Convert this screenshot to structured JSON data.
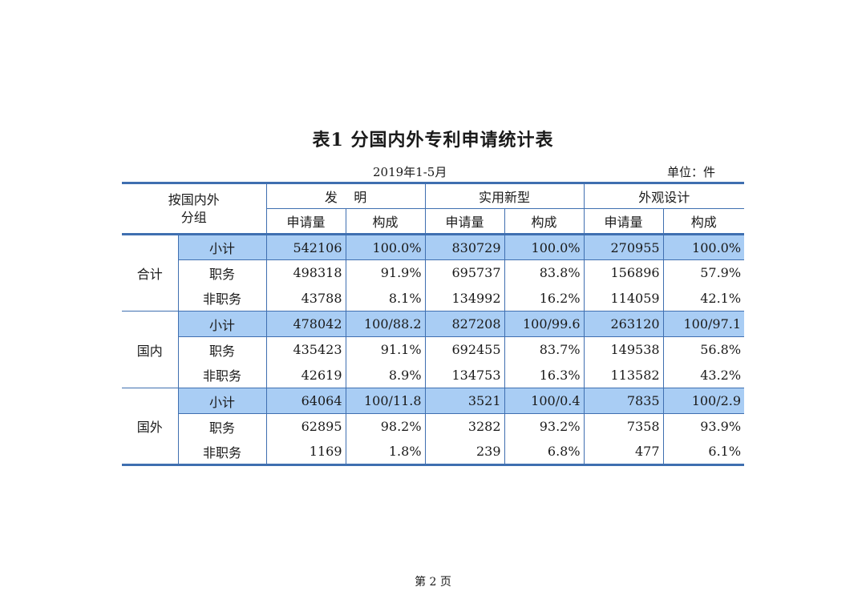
{
  "title": "表1  分国内外专利申请统计表",
  "subtitle": "2019年1-5月",
  "unit": "单位：件",
  "header": {
    "corner_line1": "按国内外",
    "corner_line2": "分组",
    "invention": "发    明",
    "utility": "实用新型",
    "design": "外观设计",
    "count": "申请量",
    "share": "构成"
  },
  "groups": [
    {
      "name": "合计",
      "rows": [
        {
          "label": "小计",
          "cells": [
            "542106",
            "100.0%",
            "830729",
            "100.0%",
            "270955",
            "100.0%"
          ]
        },
        {
          "label": "职务",
          "cells": [
            "498318",
            "91.9%",
            "695737",
            "83.8%",
            "156896",
            "57.9%"
          ]
        },
        {
          "label": "非职务",
          "cells": [
            "43788",
            "8.1%",
            "134992",
            "16.2%",
            "114059",
            "42.1%"
          ]
        }
      ]
    },
    {
      "name": "国内",
      "rows": [
        {
          "label": "小计",
          "cells": [
            "478042",
            "100/88.2",
            "827208",
            "100/99.6",
            "263120",
            "100/97.1"
          ]
        },
        {
          "label": "职务",
          "cells": [
            "435423",
            "91.1%",
            "692455",
            "83.7%",
            "149538",
            "56.8%"
          ]
        },
        {
          "label": "非职务",
          "cells": [
            "42619",
            "8.9%",
            "134753",
            "16.3%",
            "113582",
            "43.2%"
          ]
        }
      ]
    },
    {
      "name": "国外",
      "rows": [
        {
          "label": "小计",
          "cells": [
            "64064",
            "100/11.8",
            "3521",
            "100/0.4",
            "7835",
            "100/2.9"
          ]
        },
        {
          "label": "职务",
          "cells": [
            "62895",
            "98.2%",
            "3282",
            "93.2%",
            "7358",
            "93.9%"
          ]
        },
        {
          "label": "非职务",
          "cells": [
            "1169",
            "1.8%",
            "239",
            "6.8%",
            "477",
            "6.1%"
          ]
        }
      ]
    }
  ],
  "footer": "第 2 页",
  "colors": {
    "rule": "#3f6fb0",
    "highlight": "#a9cdf4"
  }
}
